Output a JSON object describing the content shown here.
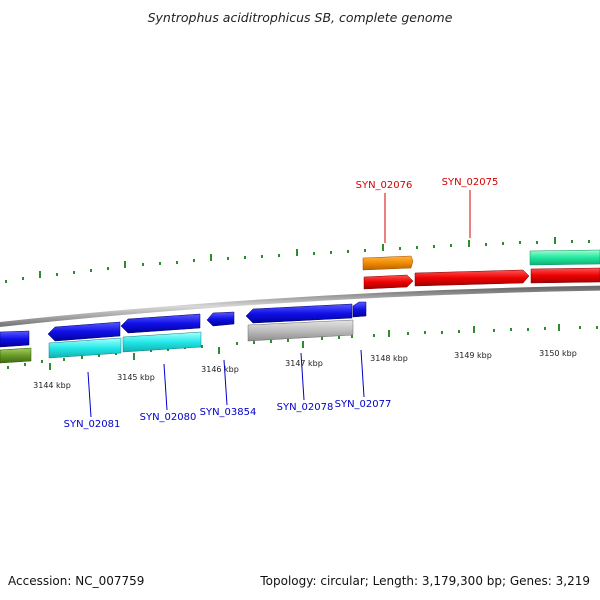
{
  "title": "Syntrophus aciditrophicus SB, complete genome",
  "footer": {
    "accession": "Accession: NC_007759",
    "summary": "Topology: circular; Length: 3,179,300 bp; Genes: 3,219"
  },
  "colors": {
    "backbone": "#8a8a8a",
    "tick": "#2e8b2e",
    "forward_label": "#d40000",
    "reverse_label": "#0000cc"
  },
  "scale_labels": [
    "3144 kbp",
    "3145 kbp",
    "3146 kbp",
    "3147 kbp",
    "3148 kbp",
    "3149 kbp",
    "3150 kbp"
  ],
  "forward_genes": [
    {
      "label": "SYN_02076",
      "color": "orange"
    },
    {
      "label": "SYN_02075",
      "color": "red"
    }
  ],
  "reverse_genes": [
    {
      "label": "SYN_02081",
      "color": "blue"
    },
    {
      "label": "SYN_02080",
      "color": "blue"
    },
    {
      "label": "SYN_03854",
      "color": "blue"
    },
    {
      "label": "SYN_02078",
      "color": "blue"
    },
    {
      "label": "SYN_02077",
      "color": "blue"
    }
  ]
}
